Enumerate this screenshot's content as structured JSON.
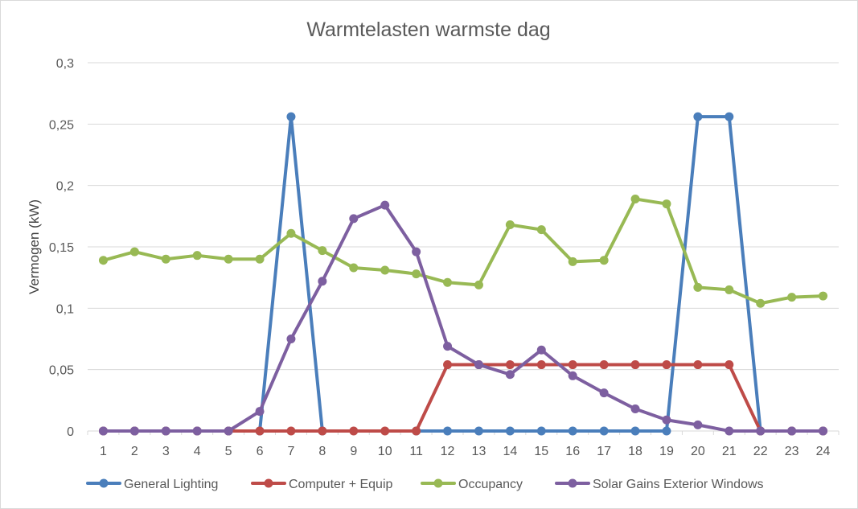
{
  "chart_data": {
    "type": "line",
    "title": "Warmtelasten warmste dag",
    "xlabel": "",
    "ylabel": "Vermogen (kW)",
    "categories": [
      "1",
      "2",
      "3",
      "4",
      "5",
      "6",
      "7",
      "8",
      "9",
      "10",
      "11",
      "12",
      "13",
      "14",
      "15",
      "16",
      "17",
      "18",
      "19",
      "20",
      "21",
      "22",
      "23",
      "24"
    ],
    "ylim": [
      0,
      0.3
    ],
    "yticks": [
      0,
      0.05,
      0.1,
      0.15,
      0.2,
      0.25,
      0.3
    ],
    "ytick_labels": [
      "0",
      "0,05",
      "0,1",
      "0,15",
      "0,2",
      "0,25",
      "0,3"
    ],
    "grid": true,
    "legend": "bottom",
    "series": [
      {
        "name": "General Lighting",
        "color": "#4a7ebb",
        "values": [
          0,
          0,
          0,
          0,
          0,
          0,
          0.256,
          0,
          null,
          null,
          0,
          0,
          0,
          0,
          0,
          0,
          0,
          0,
          0,
          0.256,
          0.256,
          0,
          0,
          0
        ]
      },
      {
        "name": "Computer + Equip",
        "color": "#be4b48",
        "values": [
          0,
          0,
          0,
          0,
          0,
          0,
          0,
          0,
          0,
          0,
          0,
          0.054,
          0.054,
          0.054,
          0.054,
          0.054,
          0.054,
          0.054,
          0.054,
          0.054,
          0.054,
          0,
          0,
          0
        ]
      },
      {
        "name": "Occupancy",
        "color": "#98b954",
        "values": [
          0.139,
          0.146,
          0.14,
          0.143,
          0.14,
          0.14,
          0.161,
          0.147,
          0.133,
          0.131,
          0.128,
          0.121,
          0.119,
          0.168,
          0.164,
          0.138,
          0.139,
          0.189,
          0.185,
          0.117,
          0.115,
          0.104,
          0.109,
          0.11
        ]
      },
      {
        "name": "Solar Gains Exterior Windows",
        "color": "#7d5fa0",
        "values": [
          0,
          0,
          0,
          0,
          0,
          0.016,
          0.075,
          0.122,
          0.173,
          0.184,
          0.146,
          0.069,
          0.054,
          0.046,
          0.066,
          0.045,
          0.031,
          0.018,
          0.009,
          0.005,
          0,
          0,
          0,
          0
        ]
      }
    ]
  }
}
